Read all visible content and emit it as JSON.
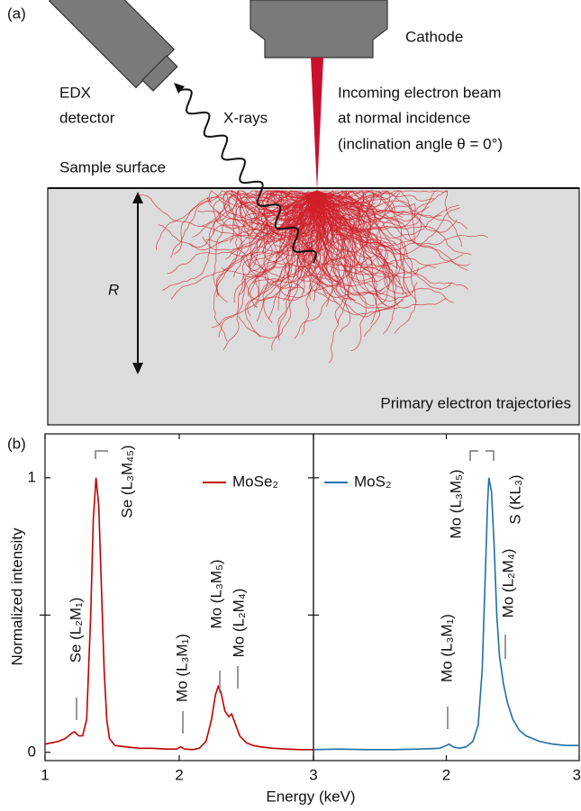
{
  "diagram": {
    "panel_label": "(a)",
    "cathode": "Cathode",
    "detector_line1": "EDX",
    "detector_line2": "detector",
    "xrays": "X-rays",
    "beam_line1": "Incoming electron beam",
    "beam_line2": "at normal incidence",
    "beam_line3": "(inclination angle θ = 0°)",
    "surface": "Sample surface",
    "range": "R",
    "trajectories": "Primary electron trajectories"
  },
  "panel_label_b": "(b)",
  "chart_data": [
    {
      "type": "line",
      "y_label": "Normalized intensity",
      "x_label": "Energy (keV)",
      "x": [
        1.0,
        1.05,
        1.1,
        1.15,
        1.2,
        1.22,
        1.25,
        1.28,
        1.31,
        1.34,
        1.36,
        1.38,
        1.4,
        1.42,
        1.44,
        1.46,
        1.48,
        1.52,
        1.6,
        1.7,
        1.8,
        1.9,
        1.98,
        2.01,
        2.04,
        2.1,
        2.15,
        2.2,
        2.24,
        2.27,
        2.29,
        2.31,
        2.34,
        2.37,
        2.39,
        2.42,
        2.45,
        2.5,
        2.55,
        2.6,
        2.7,
        2.8,
        2.9,
        3.0
      ],
      "series": [
        {
          "name": "MoSe₂",
          "color": "#c00000",
          "values": [
            0.03,
            0.035,
            0.04,
            0.05,
            0.07,
            0.075,
            0.06,
            0.06,
            0.12,
            0.5,
            0.85,
            1.0,
            0.9,
            0.6,
            0.3,
            0.12,
            0.05,
            0.025,
            0.02,
            0.015,
            0.015,
            0.012,
            0.012,
            0.02,
            0.012,
            0.01,
            0.015,
            0.04,
            0.12,
            0.21,
            0.24,
            0.22,
            0.15,
            0.13,
            0.14,
            0.1,
            0.06,
            0.035,
            0.025,
            0.02,
            0.015,
            0.012,
            0.01,
            0.01
          ]
        }
      ],
      "xlim": [
        1,
        3
      ],
      "xticks": [
        1,
        2,
        3
      ],
      "ylim": [
        -0.03,
        1.16
      ],
      "yticks": [
        0,
        1
      ],
      "yminor": [
        0.5
      ],
      "annotations": [
        "Se (L₂M₁)",
        "Se (L₃M₄₅)",
        "Mo (L₃M₁)",
        "Mo (L₃M₅)",
        "Mo (L₂M₄)"
      ]
    },
    {
      "type": "line",
      "x": [
        1.0,
        1.2,
        1.4,
        1.6,
        1.8,
        1.95,
        2.0,
        2.02,
        2.05,
        2.1,
        2.15,
        2.2,
        2.24,
        2.27,
        2.29,
        2.31,
        2.32,
        2.34,
        2.36,
        2.38,
        2.4,
        2.43,
        2.46,
        2.5,
        2.55,
        2.6,
        2.7,
        2.8,
        2.9,
        3.0
      ],
      "series": [
        {
          "name": "MoS₂",
          "color": "#1f6fa8",
          "values": [
            0.01,
            0.012,
            0.01,
            0.01,
            0.012,
            0.015,
            0.025,
            0.03,
            0.02,
            0.015,
            0.02,
            0.04,
            0.1,
            0.3,
            0.6,
            0.9,
            1.0,
            0.95,
            0.75,
            0.5,
            0.35,
            0.25,
            0.18,
            0.12,
            0.08,
            0.06,
            0.04,
            0.03,
            0.025,
            0.025
          ]
        }
      ],
      "xlim": [
        1,
        3
      ],
      "xticks": [
        2,
        3
      ],
      "ylim": [
        -0.03,
        1.16
      ],
      "yminor": [
        0.5,
        1
      ],
      "annotations": [
        "Mo (L₃M₁)",
        "Mo (L₃M₅)",
        "S (KL₃)",
        "Mo (L₂M₄)"
      ]
    }
  ]
}
